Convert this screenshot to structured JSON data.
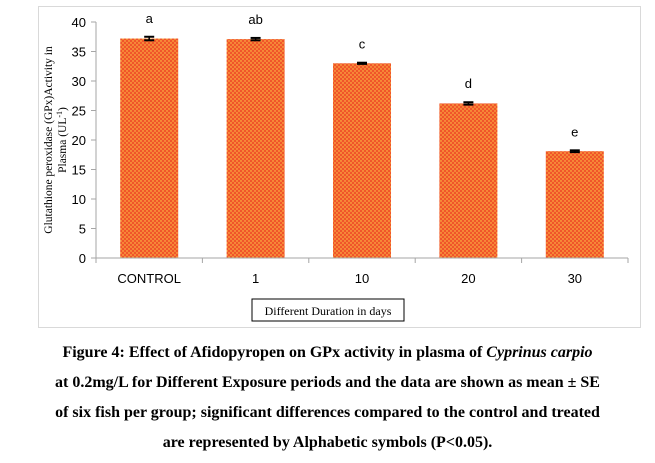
{
  "chart_data": {
    "type": "bar",
    "categories": [
      "CONTROL",
      "1",
      "10",
      "20",
      "30"
    ],
    "values": [
      37.2,
      37.1,
      33.0,
      26.2,
      18.1
    ],
    "errors": [
      0.3,
      0.2,
      0.1,
      0.2,
      0.15
    ],
    "significance": [
      "a",
      "ab",
      "c",
      "d",
      "e"
    ],
    "ylabel": "Glutathione peroxidase (GPx)Activity in Plasma (UL",
    "ylabel_sup": "-1",
    "ylabel_end": ")",
    "xlabel": "Different Duration in days",
    "ylim": [
      0,
      40
    ],
    "yticks": [
      "0",
      "5",
      "10",
      "15",
      "20",
      "25",
      "30",
      "35",
      "40"
    ],
    "grid": false,
    "colors": {
      "bar": "#f0552a",
      "dots": "#ffd24a",
      "error": "#000000",
      "axis": "#a6a6a6"
    }
  },
  "caption": {
    "part1": "Figure 4: Effect of Afidopyropen on GPx activity in plasma of ",
    "italic": "Cyprinus carpio",
    "line2": "at 0.2mg/L for Different Exposure periods and the data are shown as mean ± SE",
    "line3": "of six fish per group; significant differences compared to the control and treated",
    "line4": "are represented by Alphabetic symbols (P<0.05)."
  }
}
